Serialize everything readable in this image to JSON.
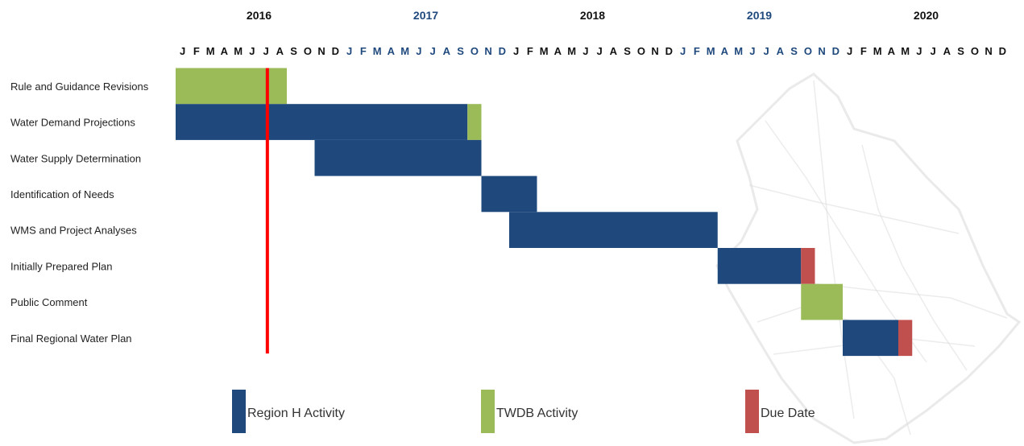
{
  "colors": {
    "region_h": "#1f497d",
    "twdb": "#9bbb59",
    "due": "#c0504d",
    "today_line": "#ff0000",
    "year_dark": "#111111",
    "year_blue": "#1f497d",
    "background_map": "#d9d9d9"
  },
  "chart_data": {
    "type": "gantt",
    "title": "",
    "years": [
      {
        "label": "2016",
        "color": "#111111"
      },
      {
        "label": "2017",
        "color": "#1f497d"
      },
      {
        "label": "2018",
        "color": "#111111"
      },
      {
        "label": "2019",
        "color": "#1f497d"
      },
      {
        "label": "2020",
        "color": "#111111"
      }
    ],
    "months": [
      "J",
      "F",
      "M",
      "A",
      "M",
      "J",
      "J",
      "A",
      "S",
      "O",
      "N",
      "D"
    ],
    "tasks": [
      {
        "name": "Rule and Guidance Revisions"
      },
      {
        "name": "Water Demand Projections"
      },
      {
        "name": "Water Supply Determination"
      },
      {
        "name": "Identification of Needs"
      },
      {
        "name": "WMS and Project Analyses"
      },
      {
        "name": "Initially Prepared Plan"
      },
      {
        "name": "Public Comment"
      },
      {
        "name": "Final Regional Water Plan"
      }
    ],
    "bars": [
      {
        "task": 0,
        "start": "2016-01",
        "end": "2016-08",
        "type": "twdb"
      },
      {
        "task": 1,
        "start": "2016-01",
        "end": "2017-09",
        "type": "region_h"
      },
      {
        "task": 1,
        "start": "2017-10",
        "end": "2017-10",
        "type": "twdb"
      },
      {
        "task": 2,
        "start": "2016-11",
        "end": "2017-10",
        "type": "region_h"
      },
      {
        "task": 3,
        "start": "2017-11",
        "end": "2018-02",
        "type": "region_h"
      },
      {
        "task": 4,
        "start": "2018-01",
        "end": "2019-03",
        "type": "region_h"
      },
      {
        "task": 5,
        "start": "2019-04",
        "end": "2019-09",
        "type": "region_h"
      },
      {
        "task": 5,
        "start": "2019-10",
        "end": "2019-10",
        "type": "due"
      },
      {
        "task": 6,
        "start": "2019-10",
        "end": "2019-12",
        "type": "twdb"
      },
      {
        "task": 7,
        "start": "2020-01",
        "end": "2020-04",
        "type": "region_h"
      },
      {
        "task": 7,
        "start": "2020-05",
        "end": "2020-05",
        "type": "due"
      }
    ],
    "today_marker": "2016-07",
    "legend": [
      {
        "key": "region_h",
        "label": "Region H Activity"
      },
      {
        "key": "twdb",
        "label": "TWDB Activity"
      },
      {
        "key": "due",
        "label": "Due Date"
      }
    ]
  }
}
